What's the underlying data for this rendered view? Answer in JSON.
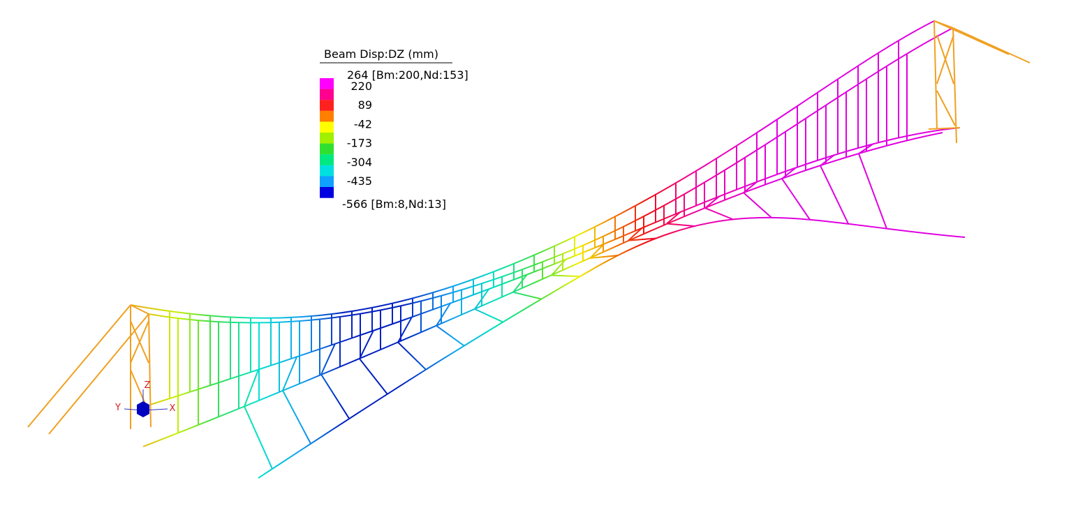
{
  "legend": {
    "title": "Beam Disp:DZ  (mm)",
    "max": "264 [Bm:200,Nd:153]",
    "labels": [
      "220",
      "89",
      "-42",
      "-173",
      "-304",
      "-435"
    ],
    "min": "-566 [Bm:8,Nd:13]"
  },
  "axes": {
    "z": "Z",
    "y": "Y",
    "x": "X"
  }
}
